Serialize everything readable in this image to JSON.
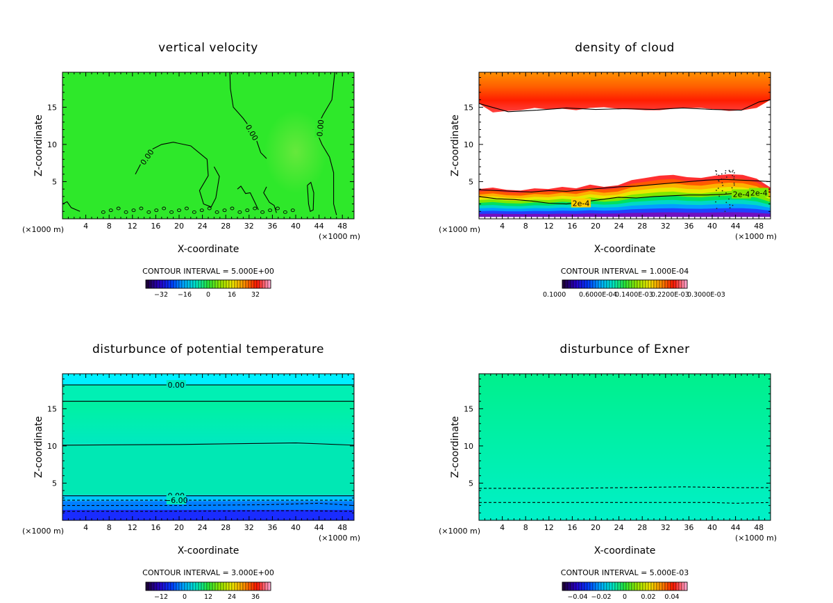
{
  "chart_data": [
    {
      "type": "heatmap",
      "title": "vertical velocity",
      "xlabel": "X-coordinate",
      "ylabel": "Z-coordinate",
      "x_unit": "(×1000 m)",
      "xlim": [
        0,
        50
      ],
      "ylim": [
        0,
        19.7
      ],
      "x_ticks": [
        4,
        8,
        12,
        16,
        20,
        24,
        28,
        32,
        36,
        40,
        44,
        48
      ],
      "y_ticks": [
        5,
        10,
        15
      ],
      "contour_interval": "CONTOUR INTERVAL = 5.000E+00",
      "colorbar_ticks": [
        "−32",
        "−16",
        "0",
        "16",
        "32"
      ],
      "colorbar_range": [
        -40,
        40
      ],
      "contour_labels": [
        "0.00",
        "0.00",
        "0.00"
      ],
      "field": {
        "base": "#2ee82a",
        "highlight": "#6ce83e",
        "highlight_center": [
          40,
          9
        ]
      },
      "contours": [
        {
          "dashed": false,
          "points": [
            [
              0,
              2
            ],
            [
              0.8,
              2.3
            ],
            [
              1.5,
              1.5
            ],
            [
              3,
              1
            ]
          ]
        },
        {
          "dashed": false,
          "points": [
            [
              12.5,
              6
            ],
            [
              14.5,
              9
            ],
            [
              17,
              10
            ],
            [
              19,
              10.3
            ],
            [
              22,
              9.8
            ],
            [
              24.8,
              8
            ],
            [
              25,
              5.8
            ],
            [
              23.5,
              3.8
            ],
            [
              24.2,
              2
            ],
            [
              25.5,
              1.6
            ],
            [
              26.3,
              2.8
            ],
            [
              26.9,
              5.7
            ],
            [
              26,
              7
            ]
          ]
        },
        {
          "dashed": false,
          "points": [
            [
              28.7,
              19.7
            ],
            [
              28.8,
              17.5
            ],
            [
              29.3,
              15
            ],
            [
              31,
              13.5
            ],
            [
              32.2,
              12.2
            ],
            [
              33.3,
              10.5
            ],
            [
              34,
              8.9
            ],
            [
              35,
              8.1
            ]
          ]
        },
        {
          "dashed": false,
          "points": [
            [
              46.7,
              19.7
            ],
            [
              46.2,
              16
            ],
            [
              44.7,
              14
            ],
            [
              43.4,
              12
            ],
            [
              44.5,
              10
            ],
            [
              45.8,
              8.3
            ],
            [
              46.5,
              6.2
            ],
            [
              46.5,
              2
            ],
            [
              47,
              0.5
            ]
          ]
        },
        {
          "dashed": false,
          "points": [
            [
              42,
              4.5
            ],
            [
              42.2,
              2
            ],
            [
              42.5,
              1
            ],
            [
              43,
              1.2
            ],
            [
              43.1,
              3.5
            ],
            [
              42.6,
              4.9
            ],
            [
              42,
              4.5
            ]
          ]
        },
        {
          "dashed": false,
          "points": [
            [
              30,
              4
            ],
            [
              30.6,
              4.4
            ],
            [
              31.4,
              3.4
            ],
            [
              32.2,
              3.5
            ],
            [
              33,
              2.2
            ],
            [
              33.6,
              1.2
            ]
          ]
        },
        {
          "dashed": false,
          "points": [
            [
              35,
              4.3
            ],
            [
              34.5,
              3.5
            ],
            [
              35.5,
              2.2
            ],
            [
              36.3,
              1.8
            ],
            [
              36.7,
              0.8
            ]
          ]
        }
      ]
    },
    {
      "type": "heatmap",
      "title": "density of cloud",
      "xlabel": "X-coordinate",
      "ylabel": "Z-coordinate",
      "x_unit": "(×1000 m)",
      "xlim": [
        0,
        50
      ],
      "ylim": [
        0,
        19.7
      ],
      "x_ticks": [
        4,
        8,
        12,
        16,
        20,
        24,
        28,
        32,
        36,
        40,
        44,
        48
      ],
      "y_ticks": [
        5,
        10,
        15
      ],
      "contour_interval": "CONTOUR INTERVAL = 1.000E-04",
      "colorbar_ticks": [
        "0.1000",
        "0.6000E-04",
        "0.1400E-03",
        "0.2200E-03",
        "0.3000E-03"
      ],
      "colorbar_range": [
        0,
        0.0003
      ],
      "contour_labels": [
        "2e-4",
        "2e-4",
        "2e-4"
      ],
      "upper_layer": {
        "top_z": 19.7,
        "bottom_z": [
          15.5,
          14.3,
          14.5,
          14.6,
          14.9,
          14.7,
          14.8,
          14.6,
          14.9,
          15,
          14.8,
          14.7,
          14.6,
          14.6,
          14.8,
          14.9,
          14.9,
          14.7,
          14.5,
          14.6,
          14.9,
          16
        ],
        "colors": [
          "#ff7a00",
          "#ff9a00",
          "#ff3a00",
          "#ff1a00",
          "#ff0000"
        ]
      },
      "lower_layer": {
        "top_z": [
          4,
          4.2,
          3.9,
          3.8,
          4.1,
          4,
          4.3,
          4.1,
          4.6,
          4.3,
          4.5,
          5.2,
          5.5,
          5.8,
          5.9,
          5.6,
          5.5,
          5.8,
          6,
          5.9,
          5.4,
          4.2
        ]
      },
      "contours": [
        {
          "dashed": false,
          "points": [
            [
              0,
              3
            ],
            [
              3,
              2.7
            ],
            [
              6,
              2.6
            ],
            [
              9,
              2.4
            ],
            [
              12,
              2.1
            ],
            [
              15,
              2
            ],
            [
              18,
              2.3
            ],
            [
              21,
              2.6
            ],
            [
              24,
              2.9
            ],
            [
              27,
              2.8
            ],
            [
              30,
              3
            ],
            [
              33,
              3.1
            ],
            [
              36,
              3.2
            ],
            [
              39,
              3.2
            ],
            [
              42,
              3.3
            ],
            [
              45,
              3.5
            ],
            [
              48,
              3.6
            ],
            [
              50,
              3.6
            ]
          ]
        },
        {
          "dashed": false,
          "points": [
            [
              0,
              3.9
            ],
            [
              3,
              3.8
            ],
            [
              6,
              3.7
            ],
            [
              9,
              3.6
            ],
            [
              12,
              3.8
            ],
            [
              15,
              3.7
            ],
            [
              18,
              3.9
            ],
            [
              21,
              4.1
            ],
            [
              24,
              4.3
            ],
            [
              27,
              4.4
            ],
            [
              30,
              4.6
            ],
            [
              33,
              4.8
            ],
            [
              36,
              5
            ],
            [
              39,
              5.2
            ],
            [
              42,
              5.3
            ],
            [
              45,
              5.2
            ],
            [
              48,
              5.1
            ],
            [
              50,
              5
            ]
          ]
        },
        {
          "dashed": false,
          "points": [
            [
              0,
              15.5
            ],
            [
              5,
              14.4
            ],
            [
              10,
              14.6
            ],
            [
              15,
              14.9
            ],
            [
              20,
              14.7
            ],
            [
              25,
              14.8
            ],
            [
              30,
              14.7
            ],
            [
              35,
              14.9
            ],
            [
              40,
              14.7
            ],
            [
              45,
              14.6
            ],
            [
              48,
              15.7
            ],
            [
              50,
              16
            ]
          ]
        }
      ]
    },
    {
      "type": "heatmap",
      "title": "disturbunce of potential temperature",
      "xlabel": "X-coordinate",
      "ylabel": "Z-coordinate",
      "x_unit": "(×1000 m)",
      "xlim": [
        0,
        50
      ],
      "ylim": [
        0,
        19.7
      ],
      "x_ticks": [
        4,
        8,
        12,
        16,
        20,
        24,
        28,
        32,
        36,
        40,
        44,
        48
      ],
      "y_ticks": [
        5,
        10,
        15
      ],
      "contour_interval": "CONTOUR INTERVAL = 3.000E+00",
      "colorbar_ticks": [
        "−12",
        "0",
        "12",
        "24",
        "36"
      ],
      "colorbar_range": [
        -15,
        39
      ],
      "contour_labels": [
        "0.00",
        "0.00",
        "−6.00"
      ],
      "bands": [
        {
          "z0": 18.2,
          "z1": 19.7,
          "color": "#00f0ff"
        },
        {
          "z0": 16,
          "z1": 18.2,
          "color": "#00f0b4"
        },
        {
          "z0": 10.2,
          "z1": 16,
          "color": "#00f0a0"
        },
        {
          "z0": 3.4,
          "z1": 10.2,
          "color": "#00e8b4"
        },
        {
          "z0": 2.6,
          "z1": 3.4,
          "color": "#00c8ff"
        },
        {
          "z0": 1.4,
          "z1": 2.6,
          "color": "#0080ff"
        },
        {
          "z0": 0,
          "z1": 1.4,
          "color": "#1a2cff"
        }
      ],
      "contours": [
        {
          "dashed": false,
          "points": [
            [
              0,
              18.2
            ],
            [
              50,
              18.2
            ]
          ]
        },
        {
          "dashed": false,
          "points": [
            [
              0,
              16
            ],
            [
              50,
              16
            ]
          ]
        },
        {
          "dashed": false,
          "points": [
            [
              0,
              10.1
            ],
            [
              20,
              10.2
            ],
            [
              30,
              10.3
            ],
            [
              40,
              10.4
            ],
            [
              50,
              10.1
            ]
          ]
        },
        {
          "dashed": false,
          "points": [
            [
              0,
              3.3
            ],
            [
              50,
              3.3
            ]
          ]
        },
        {
          "dashed": true,
          "points": [
            [
              0,
              2.7
            ],
            [
              50,
              2.7
            ]
          ]
        },
        {
          "dashed": true,
          "points": [
            [
              0,
              2
            ],
            [
              20,
              2
            ],
            [
              35,
              2.1
            ],
            [
              44,
              2.3
            ],
            [
              50,
              2
            ]
          ]
        },
        {
          "dashed": true,
          "points": [
            [
              0,
              1.2
            ],
            [
              15,
              1.2
            ],
            [
              40,
              1.3
            ],
            [
              50,
              1.2
            ]
          ]
        }
      ]
    },
    {
      "type": "heatmap",
      "title": "disturbunce of Exner",
      "xlabel": "X-coordinate",
      "ylabel": "Z-coordinate",
      "x_unit": "(×1000 m)",
      "xlim": [
        0,
        50
      ],
      "ylim": [
        0,
        19.7
      ],
      "x_ticks": [
        4,
        8,
        12,
        16,
        20,
        24,
        28,
        32,
        36,
        40,
        44,
        48
      ],
      "y_ticks": [
        5,
        10,
        15
      ],
      "contour_interval": "CONTOUR INTERVAL = 5.000E-03",
      "colorbar_ticks": [
        "−0.04",
        "−0.02",
        "0",
        "0.02",
        "0.04"
      ],
      "colorbar_range": [
        -0.05,
        0.05
      ],
      "contour_labels": [],
      "bands": [
        {
          "z0": 0,
          "z1": 19.7,
          "color": "#00f0a8"
        }
      ],
      "contours": [
        {
          "dashed": true,
          "points": [
            [
              0,
              4.3
            ],
            [
              15,
              4.3
            ],
            [
              25,
              4.4
            ],
            [
              35,
              4.5
            ],
            [
              44,
              4.4
            ],
            [
              50,
              4.4
            ]
          ]
        },
        {
          "dashed": true,
          "points": [
            [
              0,
              2.4
            ],
            [
              20,
              2.4
            ],
            [
              40,
              2.4
            ],
            [
              44,
              2.3
            ],
            [
              50,
              2.4
            ]
          ]
        }
      ]
    }
  ]
}
